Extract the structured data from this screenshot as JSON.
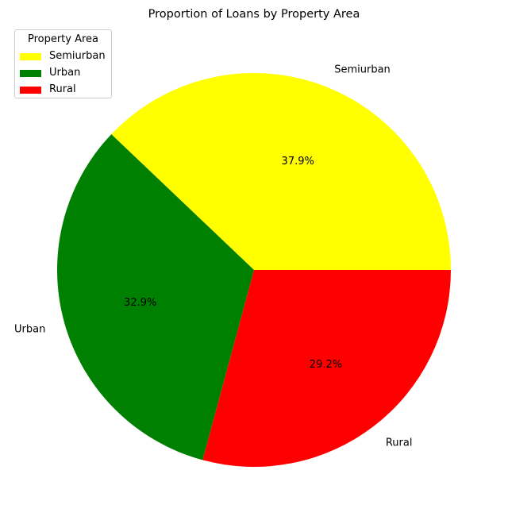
{
  "chart_data": {
    "type": "pie",
    "title": "Proportion of Loans by Property Area",
    "labels": [
      "Semiurban",
      "Urban",
      "Rural"
    ],
    "values": [
      37.9,
      32.9,
      29.2
    ],
    "pct_labels": [
      "37.9%",
      "32.9%",
      "29.2%"
    ],
    "colors": [
      "#ffff00",
      "#008000",
      "#ff0000"
    ],
    "start_angle_deg": 0,
    "direction": "counterclockwise",
    "legend": {
      "title": "Property Area",
      "placement": "upper-left",
      "entries": [
        "Semiurban",
        "Urban",
        "Rural"
      ]
    }
  }
}
